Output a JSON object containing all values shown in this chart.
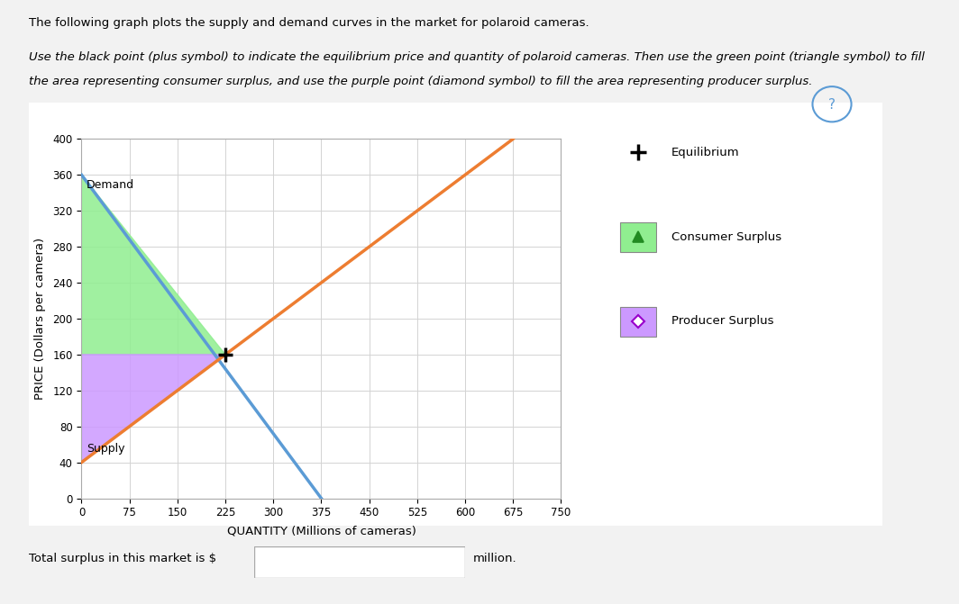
{
  "demand_points": [
    [
      0,
      360
    ],
    [
      375,
      0
    ]
  ],
  "supply_points": [
    [
      0,
      40
    ],
    [
      675,
      400
    ]
  ],
  "equilibrium": [
    225,
    160
  ],
  "demand_label": "Demand",
  "supply_label": "Supply",
  "demand_color": "#5b9bd5",
  "supply_color": "#ed7d31",
  "consumer_surplus_color": "#90ee90",
  "producer_surplus_color": "#cc99ff",
  "equilibrium_marker_color": "black",
  "consumer_surplus_triangle_color": "#228B22",
  "producer_surplus_diamond_color": "#9900cc",
  "xlabel": "QUANTITY (Millions of cameras)",
  "ylabel": "PRICE (Dollars per camera)",
  "xlim": [
    0,
    750
  ],
  "ylim": [
    0,
    400
  ],
  "xticks": [
    0,
    75,
    150,
    225,
    300,
    375,
    450,
    525,
    600,
    675,
    750
  ],
  "yticks": [
    0,
    40,
    80,
    120,
    160,
    200,
    240,
    280,
    320,
    360,
    400
  ],
  "grid_color": "#d3d3d3",
  "bg_color": "#ffffff",
  "outer_bg": "#f2f2f2",
  "panel_bg": "#ffffff",
  "legend_plus_label": "Equilibrium",
  "legend_triangle_label": "Consumer Surplus",
  "legend_diamond_label": "Producer Surplus",
  "total_surplus_text": "Total surplus in this market is $",
  "total_surplus_suffix": "million.",
  "question_circle_color": "#5b9bd5",
  "top_text": "The following graph plots the supply and demand curves in the market for polaroid cameras.",
  "italic_text1": "Use the black point (plus symbol) to indicate the equilibrium price and quantity of polaroid cameras. Then use the green point (triangle symbol) to fill",
  "italic_text2": "the area representing consumer surplus, and use the purple point (diamond symbol) to fill the area representing producer surplus."
}
